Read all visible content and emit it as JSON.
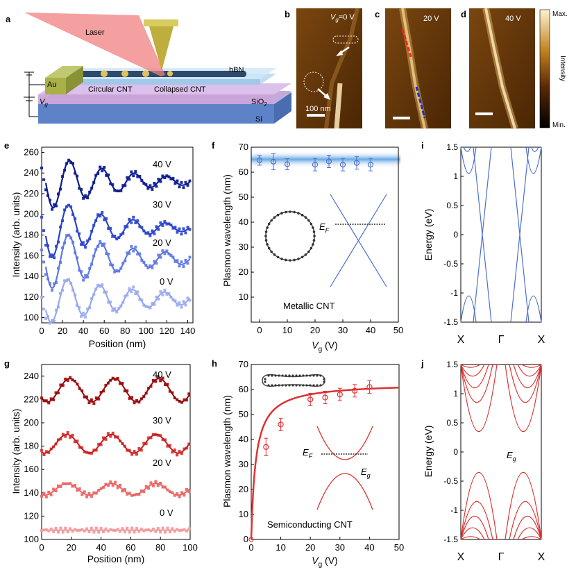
{
  "colors": {
    "blue_dark": "#0d1d8c",
    "blue_mid": "#2d44c8",
    "blue_light": "#5f78e0",
    "blue_pale": "#98a8ee",
    "red_dark": "#8a0f0f",
    "red_mid": "#c41f1f",
    "red_light": "#e86565",
    "red_pale": "#f29a9a",
    "line_blue": "#4a6fd0",
    "line_red": "#e03030",
    "laser": "#f08080",
    "tip": "#c9b84a",
    "gold": "#a8b048"
  },
  "panel_letters": {
    "a": "a",
    "b": "b",
    "c": "c",
    "d": "d",
    "e": "e",
    "f": "f",
    "g": "g",
    "h": "h",
    "i": "i",
    "j": "j"
  },
  "panel_a": {
    "laser": "Laser",
    "hbn": "hBN",
    "au": "Au",
    "vg_sym": "V",
    "vg_sub": "g",
    "circular": "Circular CNT",
    "collapsed": "Collapsed CNT",
    "sio2_main": "SiO",
    "sio2_sub": "2",
    "si": "Si"
  },
  "panel_b": {
    "vg_sym": "V",
    "vg_sub": "g",
    "vg_val": "=0 V",
    "scale": "100 nm"
  },
  "panel_c": {
    "label": "20 V"
  },
  "panel_d": {
    "label": "40 V"
  },
  "colorbar": {
    "max": "Max.",
    "title": "Intensity",
    "min": "Min."
  },
  "panel_e": {
    "ylabel": "Intensity (arb. units)",
    "xlabel": "Position (nm)",
    "xticks": [
      "0",
      "20",
      "40",
      "60",
      "80",
      "100",
      "120",
      "140"
    ],
    "yticks": [
      "100",
      "120",
      "140",
      "160",
      "180",
      "200",
      "220",
      "240",
      "260"
    ],
    "labels": [
      "40 V",
      "30 V",
      "20 V",
      "0 V"
    ]
  },
  "panel_f": {
    "ylabel": "Plasmon wavelength (nm)",
    "x_sym": "V",
    "x_sub": "g",
    "x_unit": " (V)",
    "xticks": [
      "0",
      "10",
      "20",
      "30",
      "40",
      "50"
    ],
    "yticks": [
      "10",
      "20",
      "30",
      "40",
      "50",
      "60",
      "70"
    ],
    "ef_sym": "E",
    "ef_sub": "F",
    "caption": "Metallic CNT"
  },
  "panel_g": {
    "ylabel": "Intensity (arb. units)",
    "xlabel": "Position (nm)",
    "xticks": [
      "0",
      "20",
      "40",
      "60",
      "80",
      "100"
    ],
    "yticks": [
      "100",
      "120",
      "140",
      "160",
      "180",
      "200",
      "220",
      "240"
    ],
    "labels": [
      "40 V",
      "30 V",
      "20 V",
      "0 V"
    ]
  },
  "panel_h": {
    "ylabel": "Plasmon wavelength (nm)",
    "x_sym": "V",
    "x_sub": "g",
    "x_unit": " (V)",
    "xticks": [
      "0",
      "10",
      "20",
      "30",
      "40",
      "50"
    ],
    "yticks": [
      "0",
      "10",
      "20",
      "30",
      "40",
      "50",
      "60",
      "70"
    ],
    "ef_sym": "E",
    "ef_sub": "F",
    "eg_sym": "E",
    "eg_sub": "g",
    "caption": "Semiconducting CNT"
  },
  "panel_i": {
    "ylabel": "Energy (eV)",
    "yticks": [
      "1.5",
      "1",
      "0.5",
      "0",
      "-0.5",
      "-1",
      "-1.5"
    ],
    "xticks": [
      "X",
      "Γ",
      "X"
    ]
  },
  "panel_j": {
    "ylabel": "Energy (eV)",
    "yticks": [
      "1.5",
      "1",
      "0.5",
      "0",
      "-0.5",
      "-1",
      "-1.5"
    ],
    "xticks": [
      "X",
      "Γ",
      "X"
    ],
    "eg_sym": "E",
    "eg_sub": "g"
  },
  "chart_data": [
    {
      "panel": "e",
      "type": "line",
      "xlabel": "Position (nm)",
      "ylabel": "Intensity (arb. units)",
      "xlim": [
        0,
        145
      ],
      "ylim": [
        95,
        265
      ],
      "series": [
        {
          "name": "40 V",
          "offset": 232,
          "amp": 20,
          "period": 31,
          "phase": 27,
          "decay": 65
        },
        {
          "name": "30 V",
          "offset": 187,
          "amp": 22,
          "period": 31,
          "phase": 26,
          "decay": 60
        },
        {
          "name": "20 V",
          "offset": 157,
          "amp": 23,
          "period": 31,
          "phase": 26,
          "decay": 75
        },
        {
          "name": "0 V",
          "offset": 118,
          "amp": 19,
          "period": 31,
          "phase": 25,
          "decay": 90
        }
      ]
    },
    {
      "panel": "f",
      "type": "scatter",
      "xlabel": "Vg (V)",
      "ylabel": "Plasmon wavelength (nm)",
      "xlim": [
        -3,
        50
      ],
      "ylim": [
        0,
        70
      ],
      "x": [
        0,
        5,
        10,
        20,
        25,
        30,
        35,
        40
      ],
      "y": [
        64.8,
        64.2,
        63.2,
        63.0,
        64.3,
        63.0,
        63.7,
        63.0
      ],
      "err": [
        2.0,
        3.2,
        2.2,
        2.5,
        2.5,
        2.5,
        2.5,
        2.5
      ]
    },
    {
      "panel": "g",
      "type": "line",
      "xlabel": "Position (nm)",
      "ylabel": "Intensity (arb. units)",
      "xlim": [
        0,
        100
      ],
      "ylim": [
        100,
        250
      ],
      "series": [
        {
          "name": "40 V",
          "offset": 228,
          "amp": 10,
          "period": 30,
          "phase": 19,
          "decay": 200
        },
        {
          "name": "30 V",
          "offset": 182,
          "amp": 8,
          "period": 30,
          "phase": 17,
          "decay": 300
        },
        {
          "name": "20 V",
          "offset": 143,
          "amp": 5,
          "period": 30,
          "phase": 17,
          "decay": 400
        },
        {
          "name": "0 V",
          "offset": 108,
          "amp": 0,
          "period": 30,
          "phase": 0,
          "decay": 400
        }
      ]
    },
    {
      "panel": "h",
      "type": "scatter",
      "xlabel": "Vg (V)",
      "ylabel": "Plasmon wavelength (nm)",
      "xlim": [
        0,
        50
      ],
      "ylim": [
        0,
        70
      ],
      "x": [
        5,
        10,
        20,
        25,
        30,
        35,
        40
      ],
      "y": [
        37,
        46,
        56,
        56.8,
        58,
        59.5,
        61
      ],
      "err": [
        3.5,
        2.5,
        2.5,
        2.5,
        2.5,
        2.5,
        2.5
      ]
    }
  ]
}
